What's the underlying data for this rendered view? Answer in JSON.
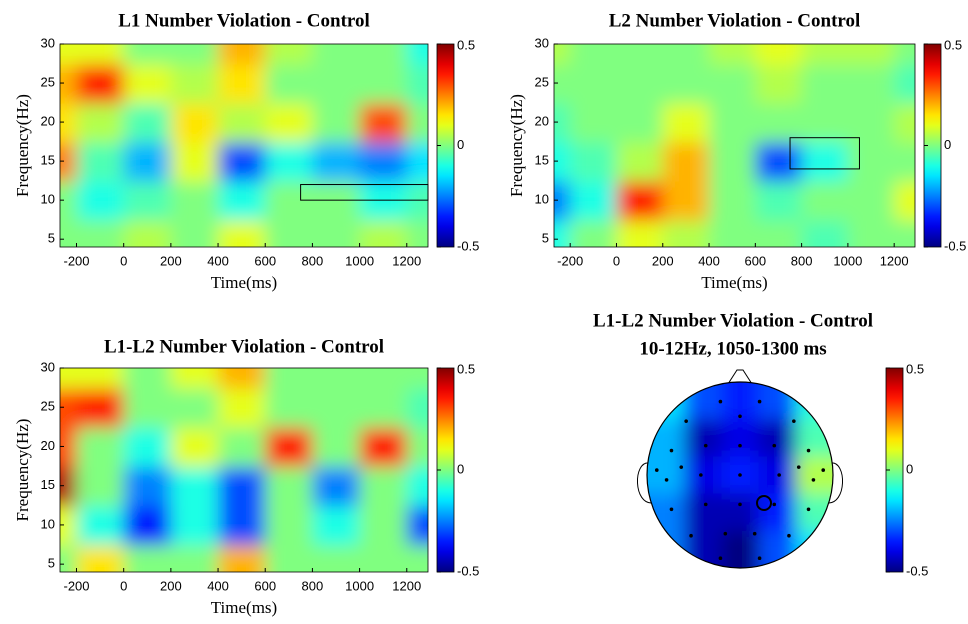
{
  "chart_data": [
    {
      "type": "heatmap",
      "title": "L1 Number Violation - Control",
      "xlabel": "Time(ms)",
      "ylabel": "Frequency(Hz)",
      "x": [
        -300,
        -100,
        100,
        300,
        500,
        700,
        900,
        1100,
        1300
      ],
      "y": [
        5,
        10,
        15,
        20,
        25,
        30
      ],
      "values": [
        [
          0,
          0,
          0.05,
          0,
          0.1,
          0,
          0,
          0.05,
          0
        ],
        [
          0,
          -0.1,
          -0.05,
          0,
          -0.1,
          0,
          0,
          -0.1,
          -0.05
        ],
        [
          0.25,
          -0.05,
          -0.2,
          0.1,
          -0.3,
          -0.1,
          -0.2,
          -0.25,
          -0.15
        ],
        [
          0.15,
          0.05,
          -0.05,
          0.15,
          0.05,
          0.1,
          0,
          0.3,
          0
        ],
        [
          0.2,
          0.35,
          0.1,
          0.05,
          0.15,
          0,
          0,
          0,
          -0.05
        ],
        [
          0.1,
          0.1,
          0,
          0,
          0.2,
          0.05,
          0,
          0,
          -0.1
        ]
      ],
      "xlim": [
        -270,
        1290
      ],
      "ylim": [
        4,
        30
      ],
      "xticks": [
        -200,
        0,
        200,
        400,
        600,
        800,
        1000,
        1200
      ],
      "yticks": [
        5,
        10,
        15,
        20,
        25,
        30
      ],
      "clim": [
        -0.5,
        0.5
      ],
      "cticks": [
        -0.5,
        0,
        0.5
      ],
      "colormap": "jet",
      "highlight": {
        "x": [
          750,
          1300
        ],
        "y": [
          10,
          12
        ]
      }
    },
    {
      "type": "heatmap",
      "title": "L2 Number Violation - Control",
      "xlabel": "Time(ms)",
      "ylabel": "Frequency(Hz)",
      "x": [
        -300,
        -100,
        100,
        300,
        500,
        700,
        900,
        1100,
        1300
      ],
      "y": [
        5,
        10,
        15,
        20,
        25,
        30
      ],
      "values": [
        [
          -0.1,
          0,
          0.1,
          0.05,
          0,
          0,
          -0.05,
          0,
          0
        ],
        [
          -0.25,
          -0.1,
          0.35,
          0.2,
          0,
          -0.05,
          0,
          0,
          0.1
        ],
        [
          -0.1,
          -0.05,
          0.05,
          0.2,
          0,
          -0.3,
          -0.1,
          0,
          0
        ],
        [
          -0.05,
          0,
          0,
          0.1,
          0,
          0,
          0,
          0,
          0.05
        ],
        [
          0,
          0,
          0,
          0,
          0,
          0.05,
          0,
          0,
          -0.05
        ],
        [
          0.05,
          0,
          0,
          0,
          0.05,
          0.1,
          0.05,
          0.05,
          0
        ]
      ],
      "xlim": [
        -270,
        1290
      ],
      "ylim": [
        4,
        30
      ],
      "xticks": [
        -200,
        0,
        200,
        400,
        600,
        800,
        1000,
        1200
      ],
      "yticks": [
        5,
        10,
        15,
        20,
        25,
        30
      ],
      "clim": [
        -0.5,
        0.5
      ],
      "cticks": [
        -0.5,
        0,
        0.5
      ],
      "colormap": "jet",
      "highlight": {
        "x": [
          750,
          1050
        ],
        "y": [
          14,
          18
        ]
      }
    },
    {
      "type": "heatmap",
      "title": "L1-L2 Number Violation - Control",
      "xlabel": "Time(ms)",
      "ylabel": "Frequency(Hz)",
      "x": [
        -300,
        -100,
        100,
        300,
        500,
        700,
        900,
        1100,
        1300
      ],
      "y": [
        5,
        10,
        15,
        20,
        25,
        30
      ],
      "values": [
        [
          0,
          0.15,
          0,
          0,
          0.2,
          0,
          0,
          0,
          0
        ],
        [
          0.1,
          -0.1,
          -0.35,
          -0.1,
          -0.3,
          0,
          -0.1,
          0,
          -0.3
        ],
        [
          0.45,
          0,
          -0.25,
          -0.1,
          -0.3,
          0,
          -0.25,
          0,
          -0.1
        ],
        [
          0.3,
          0,
          -0.1,
          0.1,
          0,
          0.35,
          0,
          0.35,
          0
        ],
        [
          0.3,
          0.35,
          0,
          0,
          0.1,
          0,
          0,
          0,
          -0.05
        ],
        [
          0.1,
          0.1,
          0,
          0.1,
          0.2,
          0,
          0,
          0,
          0
        ]
      ],
      "xlim": [
        -270,
        1290
      ],
      "ylim": [
        4,
        30
      ],
      "xticks": [
        -200,
        0,
        200,
        400,
        600,
        800,
        1000,
        1200
      ],
      "yticks": [
        5,
        10,
        15,
        20,
        25,
        30
      ],
      "clim": [
        -0.5,
        0.5
      ],
      "cticks": [
        -0.5,
        0,
        0.5
      ],
      "colormap": "jet"
    },
    {
      "type": "topomap",
      "title": "L1-L2 Number Violation - Control",
      "subtitle": "10-12Hz, 1050-1300 ms",
      "values": [
        [
          -0.15,
          -0.3,
          -0.35,
          -0.3,
          -0.1
        ],
        [
          -0.2,
          -0.45,
          -0.4,
          -0.45,
          -0.05
        ],
        [
          -0.2,
          -0.4,
          -0.35,
          -0.4,
          0.05
        ],
        [
          -0.25,
          -0.45,
          -0.45,
          -0.35,
          -0.05
        ],
        [
          -0.25,
          -0.45,
          -0.5,
          -0.3,
          -0.15
        ]
      ],
      "clim": [
        -0.5,
        0.5
      ],
      "cticks": [
        -0.5,
        0,
        0.5
      ],
      "colormap": "jet"
    }
  ]
}
